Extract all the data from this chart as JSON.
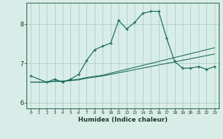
{
  "xlabel": "Humidex (Indice chaleur)",
  "bg_color": "#d9ede8",
  "grid_color": "#aacfc5",
  "line_color": "#1a6b5a",
  "xlim": [
    -0.5,
    23.5
  ],
  "ylim": [
    5.85,
    8.55
  ],
  "yticks": [
    6,
    7,
    8
  ],
  "xticks": [
    0,
    1,
    2,
    3,
    4,
    5,
    6,
    7,
    8,
    9,
    10,
    11,
    12,
    13,
    14,
    15,
    16,
    17,
    18,
    19,
    20,
    21,
    22,
    23
  ],
  "series": [
    {
      "x": [
        0,
        1,
        2,
        3,
        4,
        5,
        6,
        7,
        8,
        9,
        10,
        11,
        12,
        13,
        14,
        15,
        16,
        17,
        18,
        19,
        20,
        21,
        22,
        23
      ],
      "y": [
        6.52,
        6.52,
        6.52,
        6.54,
        6.54,
        6.56,
        6.58,
        6.62,
        6.65,
        6.68,
        6.72,
        6.76,
        6.8,
        6.84,
        6.88,
        6.92,
        6.96,
        7.0,
        7.04,
        7.08,
        7.12,
        7.16,
        7.2,
        7.24
      ],
      "has_markers": false
    },
    {
      "x": [
        0,
        1,
        2,
        3,
        4,
        5,
        6,
        7,
        8,
        9,
        10,
        11,
        12,
        13,
        14,
        15,
        16,
        17,
        18,
        19,
        20,
        21,
        22,
        23
      ],
      "y": [
        6.52,
        6.52,
        6.52,
        6.55,
        6.55,
        6.57,
        6.6,
        6.64,
        6.67,
        6.7,
        6.75,
        6.8,
        6.85,
        6.9,
        6.95,
        7.0,
        7.05,
        7.1,
        7.15,
        7.2,
        7.25,
        7.3,
        7.35,
        7.4
      ],
      "has_markers": false
    },
    {
      "x": [
        0,
        2,
        3,
        4,
        5,
        6,
        7,
        8,
        9,
        10,
        11,
        12,
        13,
        14,
        15,
        16,
        17,
        18,
        19,
        20,
        21,
        22,
        23
      ],
      "y": [
        6.68,
        6.52,
        6.6,
        6.52,
        6.6,
        6.72,
        7.08,
        7.35,
        7.44,
        7.52,
        8.1,
        7.88,
        8.05,
        8.28,
        8.33,
        8.33,
        7.65,
        7.05,
        6.88,
        6.88,
        6.92,
        6.85,
        6.92
      ],
      "has_markers": true
    }
  ]
}
